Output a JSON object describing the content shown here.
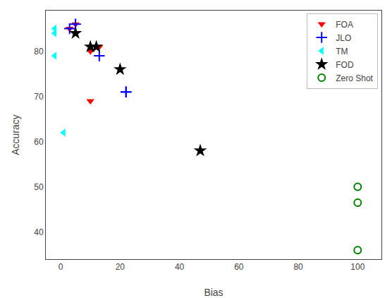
{
  "chart_data": {
    "type": "scatter",
    "xlabel": "Bias",
    "ylabel": "Accuracy",
    "xlim": [
      -5,
      108
    ],
    "ylim": [
      34,
      89
    ],
    "xticks": [
      0,
      20,
      40,
      60,
      80,
      100
    ],
    "yticks": [
      40,
      50,
      60,
      70,
      80
    ],
    "grid": false,
    "legend": "upper right",
    "series": [
      {
        "name": "FOA",
        "color": "red",
        "marker": "triangle-down",
        "x": [
          3,
          5,
          10,
          13,
          10
        ],
        "values": [
          85,
          86,
          80,
          81,
          69
        ]
      },
      {
        "name": "JLO",
        "color": "blue",
        "marker": "plus",
        "x": [
          3,
          5,
          13,
          22,
          22
        ],
        "values": [
          85,
          86,
          79,
          71,
          71
        ]
      },
      {
        "name": "TM",
        "color": "cyan",
        "marker": "triangle-left",
        "x": [
          -2,
          -2,
          -2,
          1
        ],
        "values": [
          85,
          84,
          79,
          62
        ]
      },
      {
        "name": "FOD",
        "color": "black",
        "marker": "star",
        "x": [
          5,
          10,
          12,
          20,
          47
        ],
        "values": [
          84,
          81,
          81,
          76,
          58
        ]
      },
      {
        "name": "Zero Shot",
        "color": "green",
        "marker": "circle-open",
        "x": [
          100,
          100,
          100
        ],
        "values": [
          50,
          46.5,
          36
        ]
      }
    ]
  }
}
